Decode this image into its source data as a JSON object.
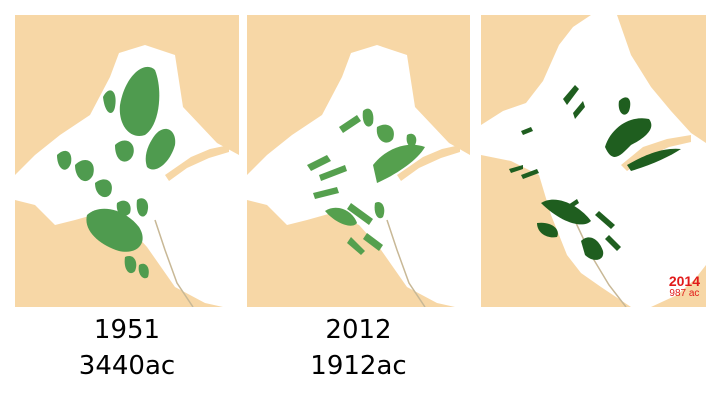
{
  "panels": [
    {
      "year": "1951",
      "area": "3440ac"
    },
    {
      "year": "2012",
      "area": "1912ac"
    },
    {
      "year": "2014",
      "area": "987 ac"
    }
  ],
  "colors": {
    "land": "#f7d7a6",
    "water": "#ffffff",
    "eelgrass_1951": "#4f9b4f",
    "eelgrass_2012": "#55a04e",
    "eelgrass_2014": "#1f5e1f",
    "shoreline": "#c8b896",
    "label_2014": "#e11a1a"
  }
}
